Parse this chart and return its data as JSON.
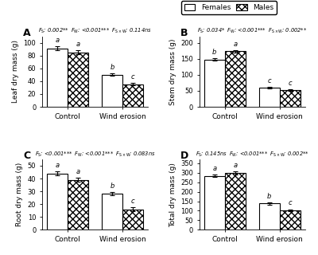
{
  "panels": [
    {
      "label": "A",
      "ylabel": "Leaf dry mass (g)",
      "ylim": [
        0,
        110
      ],
      "yticks": [
        0,
        20,
        40,
        60,
        80,
        100
      ],
      "stat_text": "$F_\\mathrm{S}$: 0.002**  $F_\\mathrm{W}$: <0.001***  $F_\\mathrm{S\\times W}$: 0.114ns",
      "groups": [
        "Control",
        "Wind erosion"
      ],
      "females": [
        91,
        50
      ],
      "males": [
        85,
        35
      ],
      "female_err": [
        3,
        2
      ],
      "male_err": [
        3,
        2
      ],
      "letters_f": [
        "a",
        "b"
      ],
      "letters_m": [
        "a",
        "c"
      ]
    },
    {
      "label": "B",
      "ylabel": "Stem dry mass (g)",
      "ylim": [
        0,
        220
      ],
      "yticks": [
        0,
        50,
        100,
        150,
        200
      ],
      "stat_text": "$F_\\mathrm{S}$: 0.034*  $F_\\mathrm{W}$: <0.001***  $F_\\mathrm{S\\times W}$: 0.002**",
      "groups": [
        "Control",
        "Wind erosion"
      ],
      "females": [
        148,
        60
      ],
      "males": [
        173,
        52
      ],
      "female_err": [
        4,
        3
      ],
      "male_err": [
        4,
        2
      ],
      "letters_f": [
        "b",
        "c"
      ],
      "letters_m": [
        "a",
        "c"
      ]
    },
    {
      "label": "C",
      "ylabel": "Root dry mass (g)",
      "ylim": [
        0,
        55
      ],
      "yticks": [
        0,
        10,
        20,
        30,
        40,
        50
      ],
      "stat_text": "$F_\\mathrm{S}$: <0.001***  $F_\\mathrm{W}$: <0.001***  $F_\\mathrm{S\\times W}$: 0.083ns",
      "groups": [
        "Control",
        "Wind erosion"
      ],
      "females": [
        44,
        28
      ],
      "males": [
        39,
        16
      ],
      "female_err": [
        1.5,
        1.2
      ],
      "male_err": [
        1.5,
        1.5
      ],
      "letters_f": [
        "a",
        "b"
      ],
      "letters_m": [
        "a",
        "c"
      ]
    },
    {
      "label": "D",
      "ylabel": "Total dry mass (g)",
      "ylim": [
        0,
        370
      ],
      "yticks": [
        0,
        50,
        100,
        150,
        200,
        250,
        300,
        350
      ],
      "stat_text": "$F_\\mathrm{S}$: 0.145ns  $F_\\mathrm{W}$: <0.001***  $F_\\mathrm{S\\times W}$: 0.002**",
      "groups": [
        "Control",
        "Wind erosion"
      ],
      "females": [
        283,
        138
      ],
      "males": [
        297,
        103
      ],
      "female_err": [
        7,
        5
      ],
      "male_err": [
        8,
        5
      ],
      "letters_f": [
        "a",
        "b"
      ],
      "letters_m": [
        "a",
        "c"
      ]
    }
  ],
  "female_color": "#ffffff",
  "male_color": "#ffffff",
  "male_hatch": "xxxx",
  "bar_edge_color": "#000000",
  "bar_width": 0.38,
  "background_color": "#ffffff"
}
